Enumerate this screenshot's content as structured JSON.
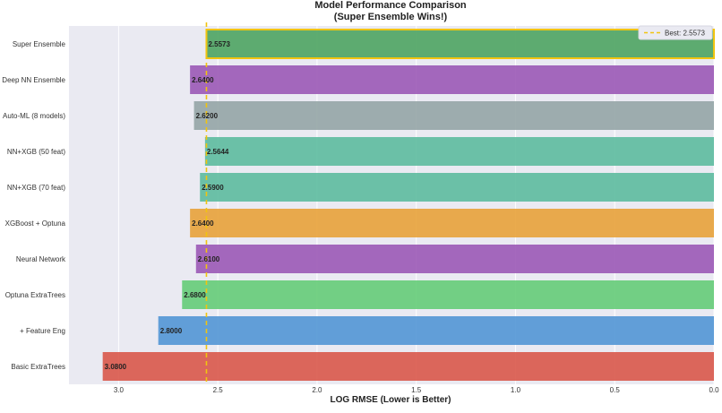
{
  "chart_data": {
    "type": "bar",
    "orientation": "horizontal",
    "title": "Model Performance Comparison",
    "subtitle": "(Super Ensemble Wins!)",
    "xlabel": "LOG RMSE (Lower is Better)",
    "ylabel": "",
    "xlim": [
      3.25,
      0.0
    ],
    "x_inverted": true,
    "xticks": [
      3.0,
      2.5,
      2.0,
      1.5,
      1.0,
      0.5,
      0.0
    ],
    "xtick_labels": [
      "3.0",
      "2.5",
      "2.0",
      "1.5",
      "1.0",
      "0.5",
      "0.0"
    ],
    "grid": true,
    "legend_placement": "top-right",
    "categories": [
      "Super Ensemble",
      "Deep NN Ensemble",
      "Auto-ML (8 models)",
      "NN+XGB (50 feat)",
      "NN+XGB (70 feat)",
      "XGBoost + Optuna",
      "Neural Network",
      "Optuna ExtraTrees",
      "+ Feature Eng",
      "Basic ExtraTrees"
    ],
    "values": [
      2.5573,
      2.64,
      2.62,
      2.5644,
      2.59,
      2.64,
      2.61,
      2.68,
      2.8,
      3.08
    ],
    "value_labels": [
      "2.5573",
      "2.6400",
      "2.6200",
      "2.5644",
      "2.5900",
      "2.6400",
      "2.6100",
      "2.6800",
      "2.8000",
      "3.0800"
    ],
    "colors": [
      "#55a868",
      "#9b59b6",
      "#95a5a6",
      "#5dbb9f",
      "#5dbb9f",
      "#e8a23a",
      "#9b59b6",
      "#65cc78",
      "#5296d5",
      "#d9584a"
    ],
    "highlight": {
      "index": 0,
      "edge_color": "#f1c40f"
    },
    "reference_line": {
      "value": 2.5573,
      "label": "Best: 2.5573",
      "color": "#f1c40f",
      "style": "dashed"
    }
  }
}
